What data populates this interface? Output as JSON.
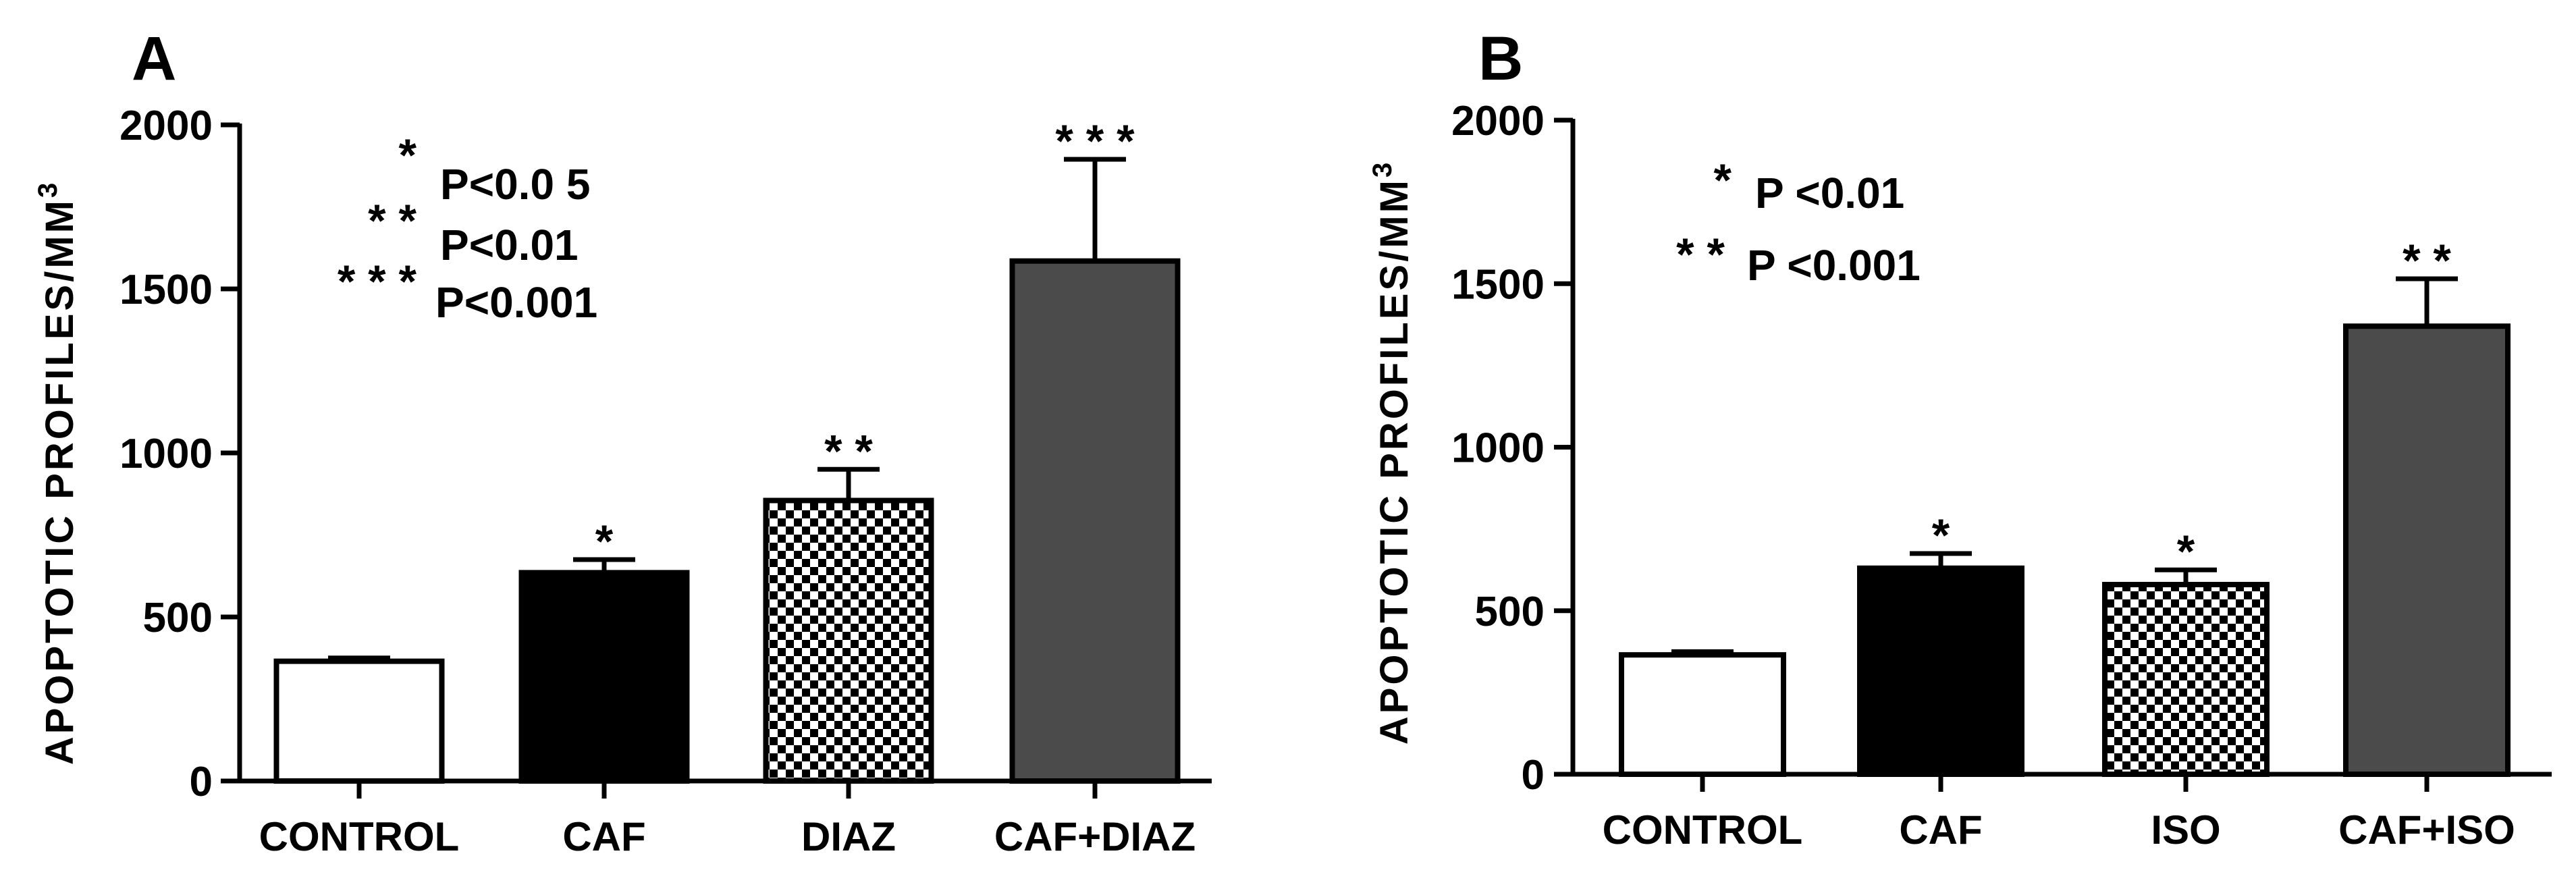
{
  "chart_data": [
    {
      "type": "bar",
      "panel_label": "A",
      "title": "",
      "xlabel": "",
      "ylabel": "APOPTOTIC PROFILES/MM",
      "ylabel_superscript": "3",
      "ylim": [
        0,
        2000
      ],
      "yticks": [
        "0",
        "500",
        "1000",
        "1500",
        "2000"
      ],
      "categories": [
        "CONTROL",
        "CAF",
        "DIAZ",
        "CAF+DIAZ"
      ],
      "values": [
        365,
        635,
        855,
        1585
      ],
      "errors": [
        10,
        40,
        95,
        310
      ],
      "fills": [
        "white",
        "black",
        "checker",
        "darkgray"
      ],
      "significance": [
        "",
        "*",
        "* *",
        "* * *"
      ],
      "legend": [
        {
          "stars": "*",
          "text": "P<0.0 5"
        },
        {
          "stars": "* *",
          "text": "P<0.01"
        },
        {
          "stars": "* * *",
          "text": "P<0.001"
        }
      ]
    },
    {
      "type": "bar",
      "panel_label": "B",
      "title": "",
      "xlabel": "",
      "ylabel": "APOPTOTIC PROFILES/MM",
      "ylabel_superscript": "3",
      "ylim": [
        0,
        2000
      ],
      "yticks": [
        "0",
        "500",
        "1000",
        "1500",
        "2000"
      ],
      "categories": [
        "CONTROL",
        "CAF",
        "ISO",
        "CAF+ISO"
      ],
      "values": [
        365,
        630,
        580,
        1370
      ],
      "errors": [
        10,
        45,
        45,
        145
      ],
      "fills": [
        "white",
        "black",
        "checker",
        "darkgray"
      ],
      "significance": [
        "",
        "*",
        "*",
        "* *"
      ],
      "legend": [
        {
          "stars": "*",
          "text": "P <0.01"
        },
        {
          "stars": "* *",
          "text": "P <0.001"
        }
      ]
    }
  ],
  "colors": {
    "axis": "#000000",
    "bar_dark": "#4b4b4b",
    "bar_black": "#000000",
    "bar_white": "#ffffff"
  }
}
